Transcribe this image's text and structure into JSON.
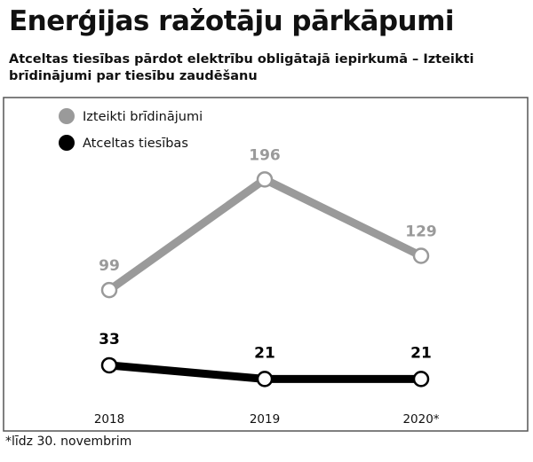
{
  "title": "Enerģijas ražotāju pārkāpumi",
  "subtitle": "Atceltas tiesības pārdot elektrību obligātajā iepirkumā – Izteikti brīdinājumi par tiesību zaudēšanu",
  "footnote": "*līdz 30. novembrim",
  "colors": {
    "series_gray": "#9a9a9a",
    "series_black": "#000000",
    "frame": "#555555"
  },
  "chart_data": {
    "type": "line",
    "title": "Enerģijas ražotāju pārkāpumi",
    "categories": [
      "2018",
      "2019",
      "2020*"
    ],
    "series": [
      {
        "name": "Izteikti brīdinājumi",
        "values": [
          99,
          196,
          129
        ],
        "labels": [
          "99",
          "196",
          "129"
        ],
        "color": "#9a9a9a"
      },
      {
        "name": "Atceltas tiesības",
        "values": [
          33,
          21,
          21
        ],
        "labels": [
          "33",
          "21",
          "21"
        ],
        "color": "#000000"
      }
    ],
    "ylim": [
      0,
      220
    ],
    "grid": false,
    "legend": "top-left"
  }
}
